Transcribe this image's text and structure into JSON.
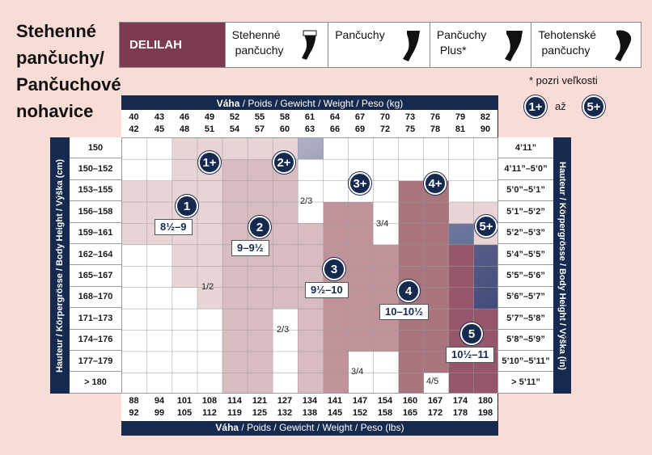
{
  "title": [
    "Stehenné",
    "pančuchy/",
    "Pančuchové",
    "nohavice"
  ],
  "tabs": [
    {
      "label": "DELILAH",
      "active": true
    },
    {
      "label": "Stehenné",
      "label2": "pančuchy",
      "icon": "thigh-high-icon"
    },
    {
      "label": "Pančuchy",
      "icon": "stockings-icon"
    },
    {
      "label": "Pančuchy",
      "label2": "Plus*",
      "icon": "stockings-plus-icon"
    },
    {
      "label": "Tehotenské",
      "label2": "pančuchy",
      "icon": "maternity-icon"
    }
  ],
  "size_note": "* pozri veľkosti",
  "size_key": {
    "from": "1+",
    "to": "5+",
    "mid": "až"
  },
  "weight_kg_title": "Váha",
  "weight_kg_sub": " / Poids / Gewicht / Weight / Peso (kg)",
  "weight_lbs_title": "Váha",
  "weight_lbs_sub": " / Poids / Gewicht / Weight / Peso (lbs)",
  "kg_cols": [
    [
      "40",
      "42"
    ],
    [
      "43",
      "45"
    ],
    [
      "46",
      "48"
    ],
    [
      "49",
      "51"
    ],
    [
      "52",
      "54"
    ],
    [
      "55",
      "57"
    ],
    [
      "58",
      "60"
    ],
    [
      "61",
      "63"
    ],
    [
      "64",
      "66"
    ],
    [
      "67",
      "69"
    ],
    [
      "70",
      "72"
    ],
    [
      "73",
      "75"
    ],
    [
      "76",
      "78"
    ],
    [
      "79",
      "81"
    ],
    [
      "82",
      "90"
    ]
  ],
  "lbs_cols": [
    [
      "88",
      "92"
    ],
    [
      "94",
      "99"
    ],
    [
      "101",
      "105"
    ],
    [
      "108",
      "112"
    ],
    [
      "114",
      "119"
    ],
    [
      "121",
      "125"
    ],
    [
      "127",
      "132"
    ],
    [
      "134",
      "138"
    ],
    [
      "141",
      "145"
    ],
    [
      "147",
      "152"
    ],
    [
      "154",
      "158"
    ],
    [
      "160",
      "165"
    ],
    [
      "167",
      "172"
    ],
    [
      "174",
      "178"
    ],
    [
      "180",
      "198"
    ]
  ],
  "height_cm_title": "Hauteur / Körpergrösse / Body Height / Výška   (cm)",
  "height_in_title": "Hauteur / Körpergrösse / Body Height / Výška   (in)",
  "rows_cm": [
    "150",
    "150–152",
    "153–155",
    "156–158",
    "159–161",
    "162–164",
    "165–167",
    "168–170",
    "171–173",
    "174–176",
    "177–179",
    "> 180"
  ],
  "rows_in": [
    "4’11”",
    "4’11”–5’0”",
    "5’0”–5’1”",
    "5’1”–5’2”",
    "5’2”–5’3”",
    "5’4”–5’5”",
    "5’5”–5’6”",
    "5’6”–5’7”",
    "5’7”–5’8”",
    "5’8”–5’9”",
    "5’10”–5’11”",
    "> 5’11”"
  ],
  "sizes": [
    {
      "num": "1",
      "label": "8½–9"
    },
    {
      "num": "2",
      "label": "9–9½"
    },
    {
      "num": "3",
      "label": "9½–10"
    },
    {
      "num": "4",
      "label": "10–10½"
    },
    {
      "num": "5",
      "label": "10½–11"
    }
  ],
  "plus_sizes": [
    "1+",
    "2+",
    "3+",
    "4+",
    "5+"
  ],
  "fractions": [
    "2/3",
    "3/4",
    "1/2",
    "2/3",
    "3/4",
    "4/5"
  ],
  "colors": {
    "navy": "#16294f",
    "brand": "#7b3a4d",
    "background": "#f9dcd6"
  }
}
